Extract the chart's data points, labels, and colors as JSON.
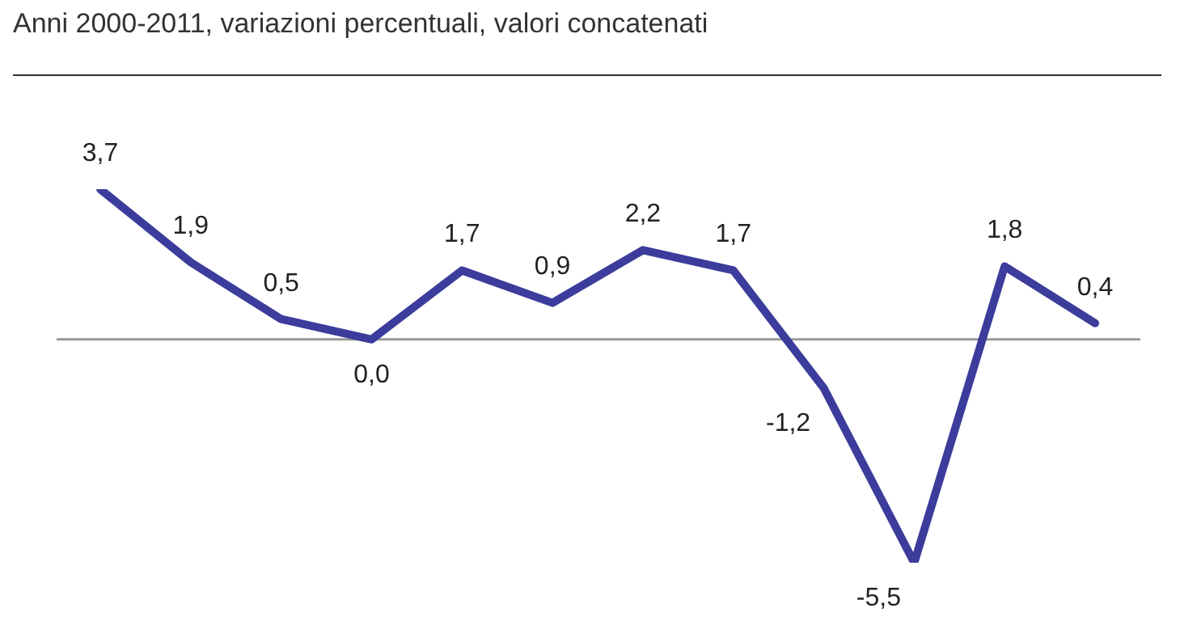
{
  "chart_data": {
    "type": "line",
    "title": "Anni 2000-2011, variazioni percentuali, valori concatenati",
    "categories": [
      null,
      null,
      null,
      null,
      null,
      null,
      null,
      null,
      null,
      null,
      null,
      null
    ],
    "series": [
      {
        "color": "#3c3c9c",
        "values": [
          3.7,
          1.9,
          0.5,
          0.0,
          1.7,
          0.9,
          2.2,
          1.7,
          -1.2,
          -5.5,
          1.8,
          0.4
        ],
        "value_labels": [
          "3,7",
          "1,9",
          "0,5",
          "0,0",
          "1,7",
          "0,9",
          "2,2",
          "1,7",
          "-1,2",
          "-5,5",
          "1,8",
          "0,4"
        ]
      }
    ],
    "line_style": "solid"
  }
}
